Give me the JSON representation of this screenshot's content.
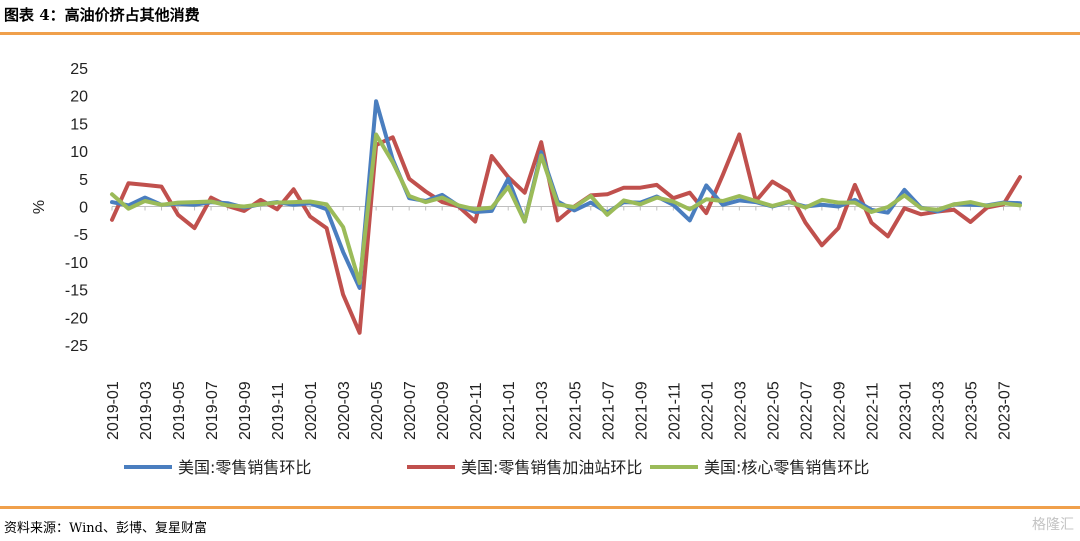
{
  "header": {
    "title": "图表 4：高油价挤占其他消费"
  },
  "footer": {
    "source": "资料来源：Wind、彭博、复星财富",
    "watermark": "格隆汇"
  },
  "colors": {
    "accent_rule": "#f0a04b",
    "series_blue": "#4a7ebf",
    "series_red": "#c0504d",
    "series_green": "#9bbb59"
  },
  "chart_data": {
    "type": "line",
    "ylabel": "%",
    "ylim": [
      -25,
      25
    ],
    "yticks": [
      25,
      20,
      15,
      10,
      5,
      0,
      -5,
      -10,
      -15,
      -20,
      -25
    ],
    "grid": false,
    "legend_position": "bottom",
    "x": [
      "2019-01",
      "2019-02",
      "2019-03",
      "2019-04",
      "2019-05",
      "2019-06",
      "2019-07",
      "2019-08",
      "2019-09",
      "2019-10",
      "2019-11",
      "2019-12",
      "2020-01",
      "2020-02",
      "2020-03",
      "2020-04",
      "2020-05",
      "2020-06",
      "2020-07",
      "2020-08",
      "2020-09",
      "2020-10",
      "2020-11",
      "2020-12",
      "2021-01",
      "2021-02",
      "2021-03",
      "2021-04",
      "2021-05",
      "2021-06",
      "2021-07",
      "2021-08",
      "2021-09",
      "2021-10",
      "2021-11",
      "2021-12",
      "2022-01",
      "2022-02",
      "2022-03",
      "2022-04",
      "2022-05",
      "2022-06",
      "2022-07",
      "2022-08",
      "2022-09",
      "2022-10",
      "2022-11",
      "2022-12",
      "2023-01",
      "2023-02",
      "2023-03",
      "2023-04",
      "2023-05",
      "2023-06",
      "2023-07",
      "2023-08"
    ],
    "x_tick_labels": [
      "2019-01",
      "2019-03",
      "2019-05",
      "2019-07",
      "2019-09",
      "2019-11",
      "2020-01",
      "2020-03",
      "2020-05",
      "2020-07",
      "2020-09",
      "2020-11",
      "2021-01",
      "2021-03",
      "2021-05",
      "2021-07",
      "2021-09",
      "2021-11",
      "2022-01",
      "2022-03",
      "2022-05",
      "2022-07",
      "2022-09",
      "2022-11",
      "2023-01",
      "2023-03",
      "2023-05",
      "2023-07"
    ],
    "series": [
      {
        "name": "美国:零售销售环比",
        "color": "#4a7ebf",
        "values": [
          0.8,
          0.2,
          1.6,
          0.3,
          0.5,
          0.3,
          0.8,
          0.6,
          -0.2,
          0.4,
          0.8,
          0.3,
          0.6,
          -0.5,
          -8.2,
          -14.7,
          19.0,
          8.5,
          1.5,
          1.0,
          2.1,
          0.1,
          -1.0,
          -0.8,
          5.0,
          -2.7,
          9.8,
          0.9,
          -0.7,
          0.7,
          -1.1,
          0.8,
          0.7,
          1.8,
          0.3,
          -2.5,
          3.8,
          0.3,
          1.1,
          0.8,
          0.0,
          0.8,
          0.0,
          0.3,
          0.0,
          1.2,
          -0.6,
          -1.1,
          3.0,
          -0.2,
          -0.9,
          0.4,
          0.3,
          0.2,
          0.7,
          0.6
        ]
      },
      {
        "name": "美国:零售销售加油站环比",
        "color": "#c0504d",
        "values": [
          -2.4,
          4.2,
          3.9,
          3.6,
          -1.5,
          -3.9,
          1.6,
          0.1,
          -0.8,
          1.2,
          -0.5,
          3.1,
          -1.8,
          -3.9,
          -15.9,
          -22.8,
          11.1,
          12.5,
          5.0,
          2.7,
          0.8,
          0.0,
          -2.7,
          9.1,
          5.3,
          2.5,
          11.6,
          -2.5,
          0.0,
          2.0,
          2.2,
          3.4,
          3.4,
          3.9,
          1.5,
          2.5,
          -1.2,
          5.7,
          13.0,
          1.0,
          4.5,
          2.7,
          -2.9,
          -7.0,
          -3.9,
          3.9,
          -2.9,
          -5.4,
          -0.3,
          -1.4,
          -0.9,
          -0.6,
          -2.8,
          -0.2,
          0.4,
          5.3
        ]
      },
      {
        "name": "美国:核心零售销售环比",
        "color": "#9bbb59",
        "values": [
          2.2,
          -0.4,
          1.0,
          0.3,
          0.7,
          0.8,
          0.9,
          0.2,
          0.0,
          0.4,
          0.7,
          0.8,
          0.9,
          0.4,
          -3.7,
          -13.8,
          13.0,
          8.0,
          1.9,
          0.8,
          1.6,
          0.2,
          -0.5,
          -0.2,
          3.5,
          -2.7,
          9.2,
          0.4,
          -0.1,
          1.9,
          -1.5,
          1.1,
          0.4,
          1.6,
          0.9,
          -0.5,
          1.3,
          1.0,
          1.9,
          1.0,
          0.1,
          0.9,
          -0.2,
          1.2,
          0.7,
          0.7,
          -1.0,
          -0.1,
          2.0,
          -0.3,
          -0.6,
          0.4,
          0.8,
          0.1,
          0.6,
          0.2
        ]
      }
    ]
  }
}
